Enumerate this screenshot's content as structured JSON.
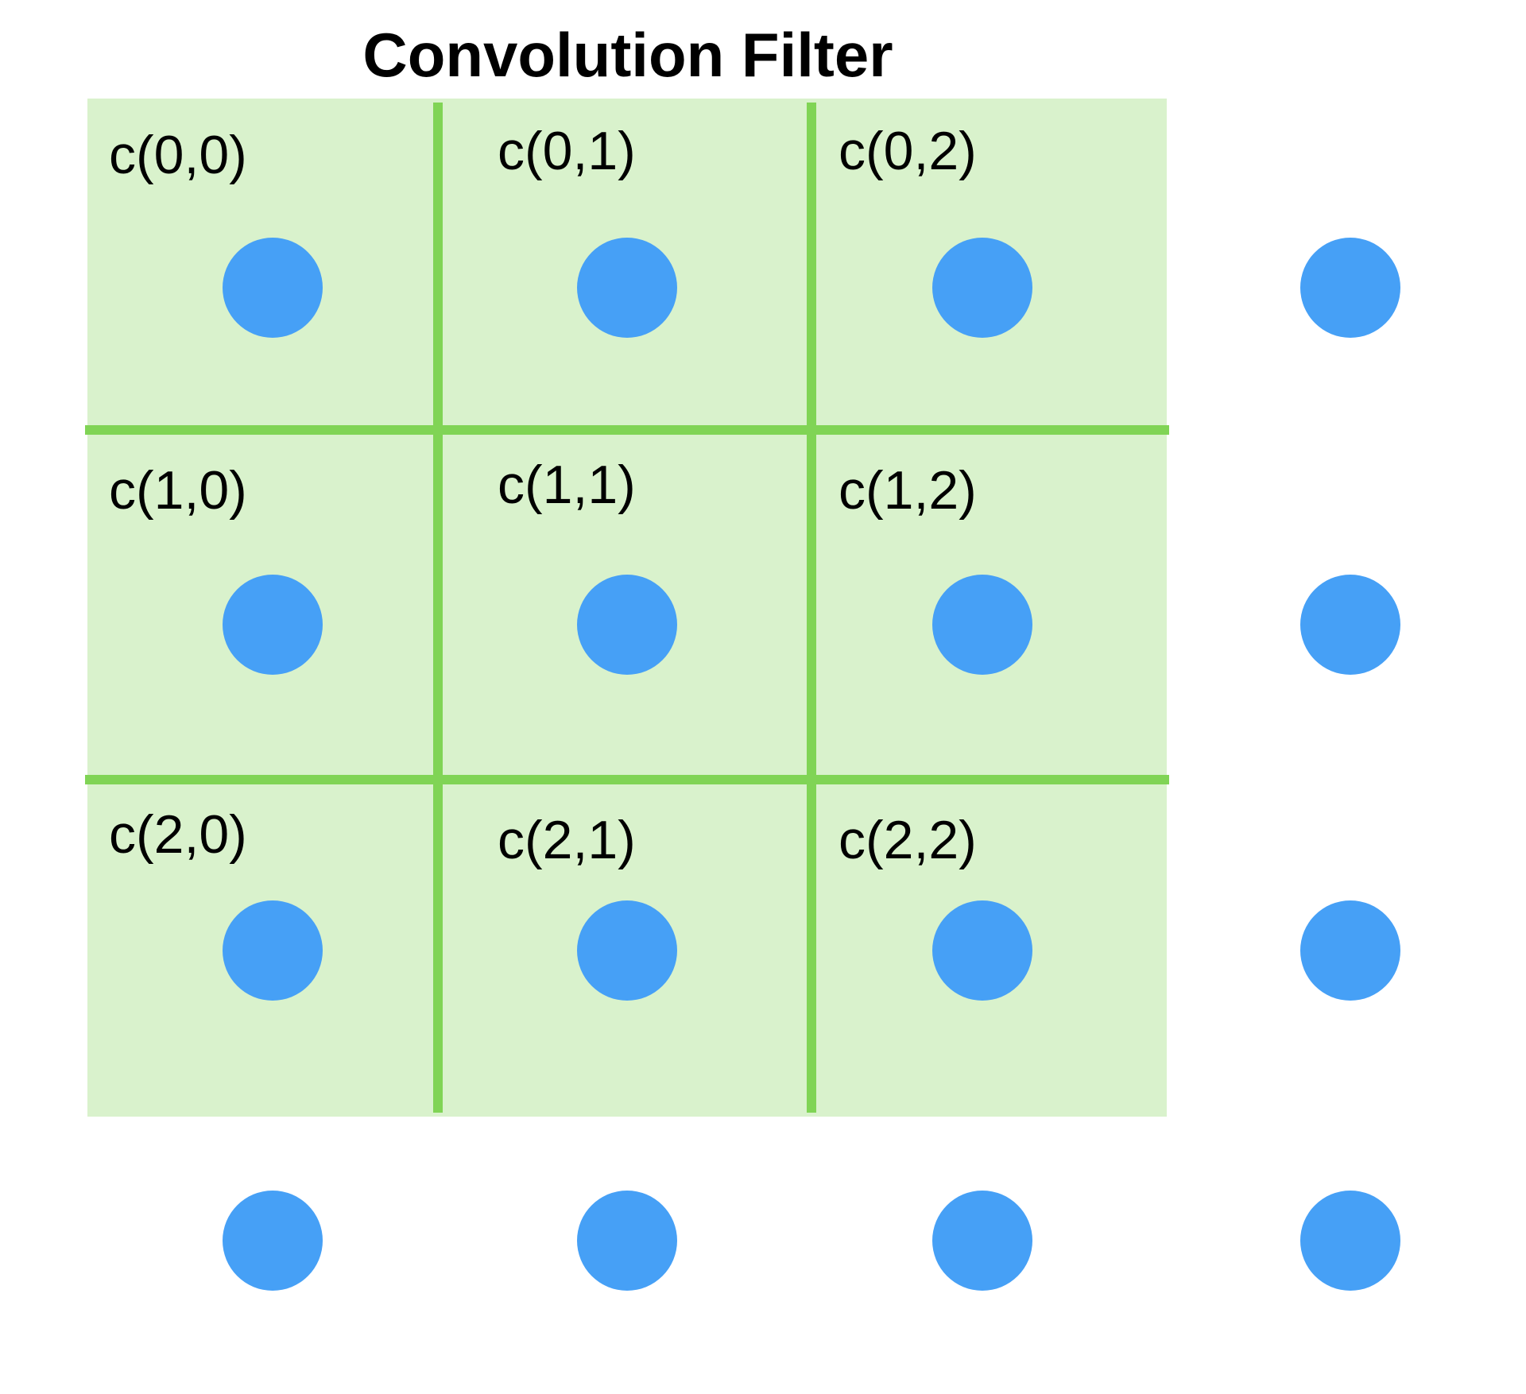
{
  "title": "Convolution Filter",
  "colors": {
    "filter_fill": "#d9f2cc",
    "filter_lines": "#80d455",
    "dot": "#46a0f6",
    "text": "#000000",
    "background": "#ffffff"
  },
  "filter": {
    "labels": [
      [
        "c(0,0)",
        "c(0,1)",
        "c(0,2)"
      ],
      [
        "c(1,0)",
        "c(1,1)",
        "c(1,2)"
      ],
      [
        "c(2,0)",
        "c(2,1)",
        "c(2,2)"
      ]
    ]
  },
  "grid": {
    "rows": 4,
    "cols": 4
  }
}
